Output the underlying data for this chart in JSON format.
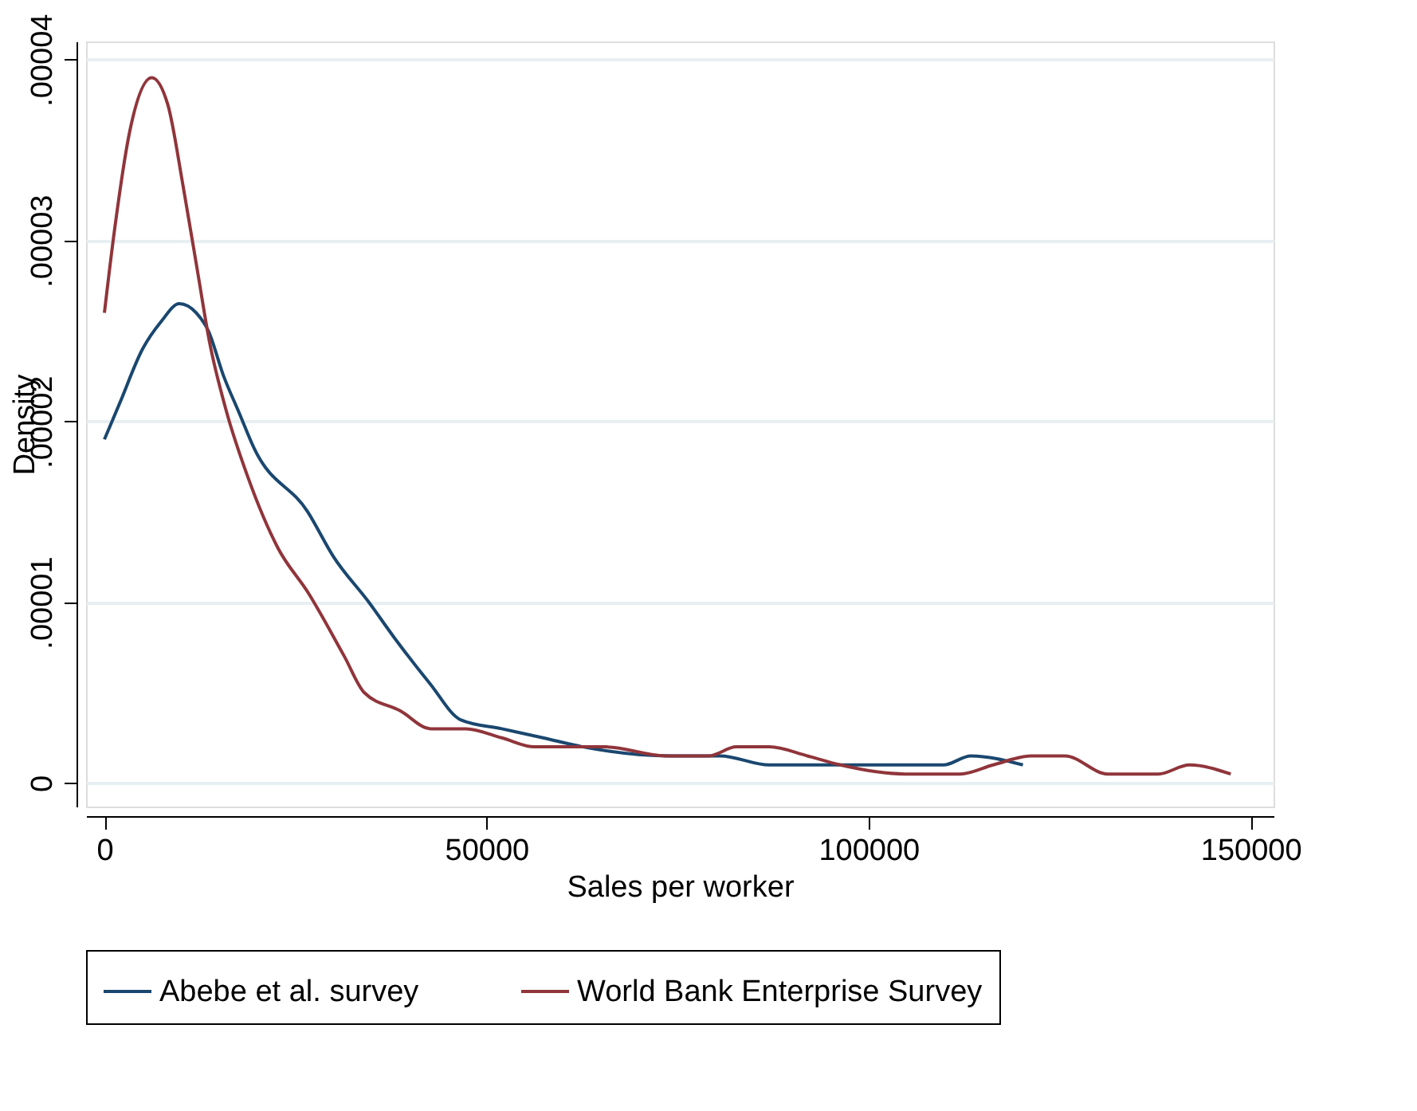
{
  "chart_data": {
    "type": "line",
    "xlabel": "Sales per worker",
    "ylabel": "Density",
    "xlim": [
      -2400,
      153000
    ],
    "ylim": [
      -1.3e-06,
      4.1e-05
    ],
    "xticks": [
      0,
      50000,
      100000,
      150000
    ],
    "yticks": [
      {
        "value": 0,
        "label": "0"
      },
      {
        "value": 1e-05,
        "label": ".00001"
      },
      {
        "value": 2e-05,
        "label": ".00002"
      },
      {
        "value": 3e-05,
        "label": ".00003"
      },
      {
        "value": 4e-05,
        "label": ".00004"
      }
    ],
    "grid": "y",
    "legend": "bottom",
    "line_style": "solid",
    "marker": "none",
    "series": [
      {
        "name": "Abebe et al. survey",
        "color": "#1a476f",
        "x": [
          0,
          2000,
          5000,
          7400,
          9800,
          12000,
          13600,
          15600,
          17600,
          19600,
          26600,
          30000,
          34600,
          38000,
          42600,
          46600,
          52000,
          57400,
          62600,
          74100,
          80600,
          87000,
          92000,
          100600,
          104800,
          109800,
          113400,
          120200
        ],
        "values": [
          1.9e-05,
          2.1e-05,
          2.4e-05,
          2.55e-05,
          2.65e-05,
          2.6e-05,
          2.5e-05,
          2.25e-05,
          2.05e-05,
          1.85e-05,
          1.5e-05,
          1.25e-05,
          1e-05,
          8e-06,
          5.5e-06,
          3.5e-06,
          3e-06,
          2.5e-06,
          2e-06,
          1.5e-06,
          1.5e-06,
          1e-06,
          1e-06,
          1e-06,
          1e-06,
          1e-06,
          1.5e-06,
          1e-06
        ]
      },
      {
        "name": "World Bank Enterprise Survey",
        "color": "#90353b",
        "x": [
          0,
          1300,
          3300,
          6200,
          8300,
          10300,
          12300,
          13700,
          16000,
          18700,
          22700,
          26700,
          31400,
          34000,
          38700,
          42700,
          47300,
          52000,
          56300,
          61300,
          65600,
          73400,
          79100,
          82700,
          87000,
          92000,
          96300,
          104800,
          108400,
          112000,
          116300,
          121300,
          125700,
          131300,
          134900,
          137900,
          142000,
          147400
        ],
        "values": [
          2.6e-05,
          3.05e-05,
          3.6e-05,
          3.9e-05,
          3.75e-05,
          3.3e-05,
          2.8e-05,
          2.45e-05,
          2.05e-05,
          1.7e-05,
          1.3e-05,
          1.05e-05,
          7e-06,
          5e-06,
          4e-06,
          3e-06,
          3e-06,
          2.5e-06,
          2e-06,
          2e-06,
          2e-06,
          1.5e-06,
          1.5e-06,
          2e-06,
          2e-06,
          1.5e-06,
          1e-06,
          5e-07,
          5e-07,
          5e-07,
          1e-06,
          1.5e-06,
          1.5e-06,
          5e-07,
          5e-07,
          5e-07,
          1e-06,
          5e-07
        ]
      }
    ]
  }
}
